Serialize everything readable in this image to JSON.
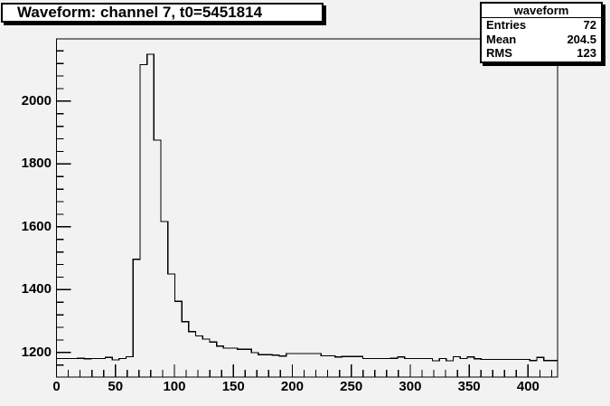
{
  "title": {
    "text": "Waveform: channel 7, t0=5451814"
  },
  "stats_box": {
    "header": "waveform",
    "rows": [
      {
        "label": "Entries",
        "value": "72"
      },
      {
        "label": "Mean",
        "value": "204.5"
      },
      {
        "label": "RMS",
        "value": "123"
      }
    ]
  },
  "colors": {
    "background": "#f2f2f2",
    "pave_fill": "#ffffff",
    "line": "#000000",
    "text": "#000000"
  },
  "chart_data": {
    "type": "line",
    "style": "step-histogram",
    "title": "Waveform: channel 7, t0=5451814",
    "xlabel": "",
    "ylabel": "",
    "xlim": [
      0,
      425
    ],
    "ylim": [
      1122,
      2198
    ],
    "grid": false,
    "legend": null,
    "x_axis": {
      "major_ticks": [
        0,
        50,
        100,
        150,
        200,
        250,
        300,
        350,
        400
      ],
      "minor_step": 10
    },
    "y_axis": {
      "major_ticks": [
        1200,
        1400,
        1600,
        1800,
        2000
      ],
      "minor_step": 40
    },
    "n_bins": 72,
    "bin_values": [
      1181,
      1181,
      1181,
      1182,
      1180,
      1181,
      1181,
      1185,
      1177,
      1181,
      1187,
      1497,
      2116,
      2149,
      1876,
      1617,
      1450,
      1363,
      1298,
      1267,
      1253,
      1243,
      1234,
      1221,
      1214,
      1214,
      1211,
      1211,
      1200,
      1193,
      1193,
      1192,
      1189,
      1197,
      1197,
      1197,
      1197,
      1197,
      1190,
      1190,
      1186,
      1188,
      1188,
      1188,
      1181,
      1181,
      1181,
      1181,
      1182,
      1186,
      1181,
      1181,
      1181,
      1181,
      1174,
      1181,
      1174,
      1187,
      1181,
      1186,
      1180,
      1178,
      1178,
      1178,
      1178,
      1178,
      1178,
      1178,
      1175,
      1185,
      1175,
      1175
    ]
  }
}
